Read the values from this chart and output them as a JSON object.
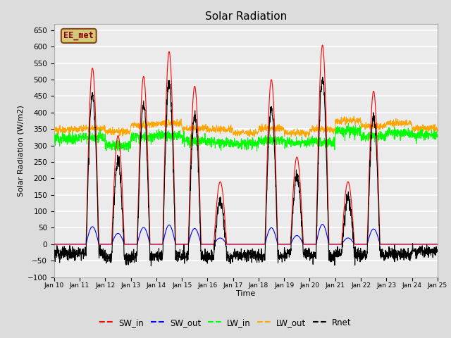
{
  "title": "Solar Radiation",
  "ylabel": "Solar Radiation (W/m2)",
  "xlabel": "Time",
  "ylim": [
    -100,
    670
  ],
  "num_days": 15,
  "points_per_day": 144,
  "bg_color": "#dcdcdc",
  "plot_bg_color": "#ebebeb",
  "legend_labels": [
    "SW_in",
    "SW_out",
    "LW_in",
    "LW_out",
    "Rnet"
  ],
  "legend_colors": [
    "red",
    "blue",
    "lime",
    "orange",
    "black"
  ],
  "watermark_text": "EE_met",
  "watermark_bg": "#d4c97a",
  "watermark_border": "#8b4513",
  "sw_day_peaks": [
    0,
    535,
    330,
    510,
    585,
    480,
    190,
    0,
    500,
    265,
    605,
    190,
    465,
    0,
    0
  ],
  "lw_in_base": [
    320,
    325,
    300,
    325,
    330,
    315,
    310,
    305,
    315,
    308,
    310,
    345,
    328,
    338,
    330
  ],
  "lw_out_base": [
    348,
    352,
    342,
    362,
    368,
    352,
    348,
    338,
    352,
    338,
    348,
    375,
    358,
    368,
    352
  ]
}
